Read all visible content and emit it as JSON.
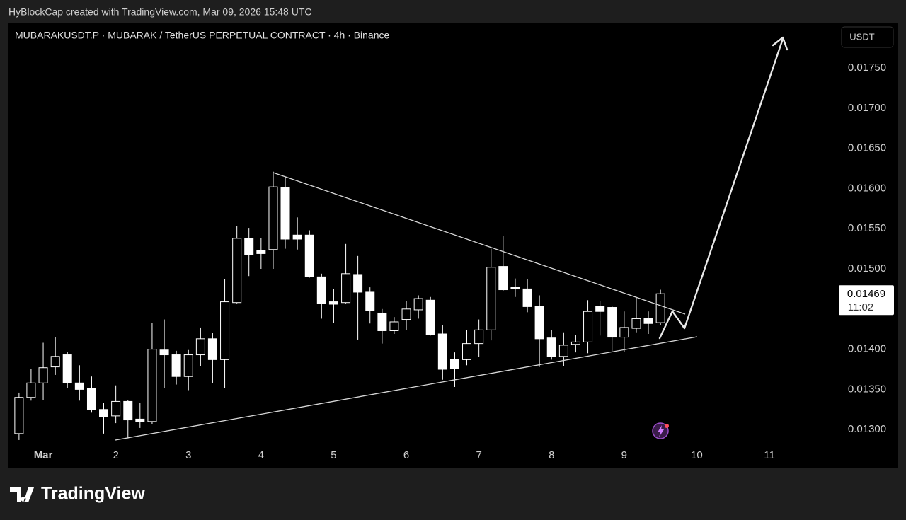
{
  "header": {
    "credit": "HyBlockCap created with TradingView.com, Mar 09, 2026 15:48 UTC",
    "logo": "TradingView"
  },
  "chart_data": {
    "type": "candlestick",
    "title": "MUBARAKUSDT.P · MUBARAK / TetherUS PERPETUAL CONTRACT · 4h · Binance",
    "currency": "USDT",
    "x": [
      0.667,
      0.833,
      1,
      1.167,
      1.333,
      1.5,
      1.667,
      1.833,
      2,
      2.167,
      2.333,
      2.5,
      2.667,
      2.833,
      3,
      3.167,
      3.333,
      3.5,
      3.667,
      3.833,
      4,
      4.167,
      4.333,
      4.5,
      4.667,
      4.833,
      5,
      5.167,
      5.333,
      5.5,
      5.667,
      5.833,
      6,
      6.167,
      6.333,
      6.5,
      6.667,
      6.833,
      7,
      7.167,
      7.333,
      7.5,
      7.667,
      7.833,
      8,
      8.167,
      8.333,
      8.5,
      8.667,
      8.833,
      9,
      9.167,
      9.333,
      9.5
    ],
    "open": [
      0.01295,
      0.0134,
      0.01358,
      0.01378,
      0.01393,
      0.01358,
      0.01351,
      0.01325,
      0.01317,
      0.01335,
      0.01313,
      0.0131,
      0.01399,
      0.01393,
      0.01366,
      0.01393,
      0.01413,
      0.01387,
      0.01458,
      0.01538,
      0.01523,
      0.01524,
      0.01601,
      0.01542,
      0.01542,
      0.0149,
      0.01459,
      0.01458,
      0.01493,
      0.01471,
      0.01445,
      0.01423,
      0.01437,
      0.01449,
      0.01461,
      0.01419,
      0.01387,
      0.01387,
      0.01407,
      0.01424,
      0.01503,
      0.01477,
      0.01475,
      0.01453,
      0.01414,
      0.01391,
      0.01406,
      0.01409,
      0.01453,
      0.01452,
      0.01415,
      0.01426,
      0.01438,
      0.01433
    ],
    "high": [
      0.01346,
      0.01375,
      0.01408,
      0.01415,
      0.01397,
      0.0138,
      0.01366,
      0.01333,
      0.01355,
      0.01337,
      0.01333,
      0.01433,
      0.01437,
      0.01398,
      0.01399,
      0.01427,
      0.0142,
      0.01487,
      0.01553,
      0.01551,
      0.01538,
      0.01621,
      0.01615,
      0.01564,
      0.01548,
      0.01494,
      0.01475,
      0.01531,
      0.01516,
      0.01477,
      0.0145,
      0.0144,
      0.0146,
      0.01467,
      0.01465,
      0.0143,
      0.01396,
      0.01424,
      0.01437,
      0.01525,
      0.01541,
      0.01488,
      0.01487,
      0.01467,
      0.01424,
      0.01421,
      0.01418,
      0.01461,
      0.0146,
      0.01454,
      0.01447,
      0.01465,
      0.01447,
      0.01474
    ],
    "low": [
      0.01287,
      0.01336,
      0.01337,
      0.01368,
      0.01352,
      0.01336,
      0.01321,
      0.01295,
      0.01308,
      0.01289,
      0.01302,
      0.01307,
      0.01352,
      0.01356,
      0.01349,
      0.01379,
      0.01358,
      0.01352,
      0.01457,
      0.01491,
      0.015,
      0.015,
      0.01525,
      0.01524,
      0.01489,
      0.01438,
      0.01433,
      0.01457,
      0.01412,
      0.01432,
      0.01407,
      0.01419,
      0.01424,
      0.01438,
      0.01417,
      0.01362,
      0.01353,
      0.0138,
      0.0139,
      0.01411,
      0.01472,
      0.01465,
      0.01446,
      0.01378,
      0.01387,
      0.01379,
      0.01396,
      0.01395,
      0.01417,
      0.01398,
      0.01397,
      0.01421,
      0.01419,
      0.0143
    ],
    "close": [
      0.0134,
      0.01358,
      0.01377,
      0.01391,
      0.01358,
      0.0135,
      0.01325,
      0.01316,
      0.01335,
      0.01312,
      0.0131,
      0.014,
      0.01393,
      0.01366,
      0.01393,
      0.01413,
      0.01387,
      0.01459,
      0.01538,
      0.01518,
      0.01519,
      0.01602,
      0.01537,
      0.01537,
      0.0149,
      0.01457,
      0.01456,
      0.01494,
      0.01471,
      0.01448,
      0.01423,
      0.01434,
      0.0145,
      0.01463,
      0.01418,
      0.01375,
      0.01376,
      0.01407,
      0.01424,
      0.01502,
      0.01474,
      0.01475,
      0.01453,
      0.01413,
      0.01391,
      0.01405,
      0.01409,
      0.01447,
      0.01447,
      0.01415,
      0.01427,
      0.01438,
      0.01432,
      0.01469
    ],
    "last_price": {
      "value": 0.01469,
      "countdown": "11:02"
    },
    "xlim": [
      0.522,
      11.906
    ],
    "xticks": [
      {
        "value": 1,
        "label": "Mar"
      },
      2,
      3,
      4,
      5,
      6,
      7,
      8,
      9,
      10,
      11
    ],
    "ylim": [
      0.018055,
      0.012535
    ],
    "yticks": [
      {
        "value": 0.013,
        "label": "0.01300"
      },
      {
        "value": 0.0135,
        "label": "0.01350"
      },
      {
        "value": 0.014,
        "label": "0.01400"
      },
      {
        "value": 0.0145,
        "label": "0.01450"
      },
      {
        "value": 0.015,
        "label": "0.01500"
      },
      {
        "value": 0.0155,
        "label": "0.01550"
      },
      {
        "value": 0.016,
        "label": "0.01600"
      },
      {
        "value": 0.0165,
        "label": "0.01650"
      },
      {
        "value": 0.017,
        "label": "0.01700"
      },
      {
        "value": 0.0175,
        "label": "0.01750"
      }
    ],
    "up_color": "#000000",
    "down_color": "#ffffff",
    "wick_color": "#ffffff"
  }
}
